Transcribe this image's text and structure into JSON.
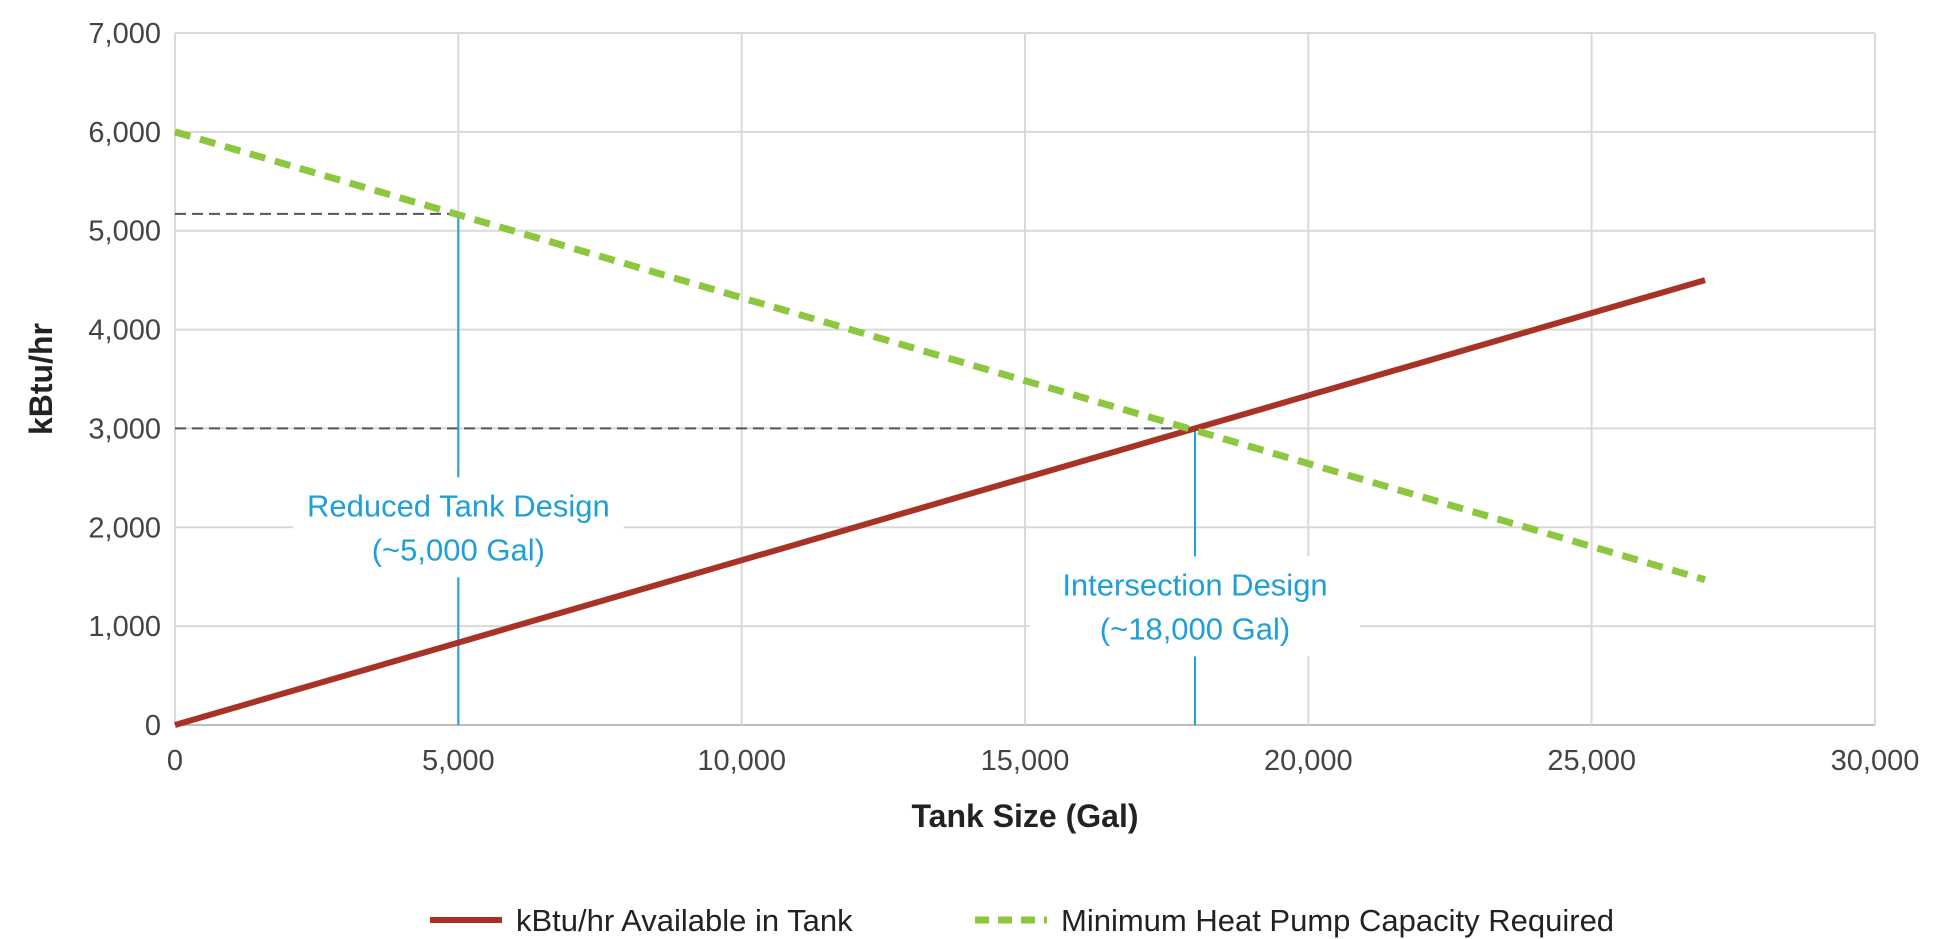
{
  "chart_data": {
    "type": "line",
    "title": "",
    "xlabel": "Tank Size (Gal)",
    "ylabel": "kBtu/hr",
    "xlim": [
      0,
      30000
    ],
    "ylim": [
      0,
      7000
    ],
    "x_ticks": [
      0,
      5000,
      10000,
      15000,
      20000,
      25000,
      30000
    ],
    "x_tick_labels": [
      "0",
      "5,000",
      "10,000",
      "15,000",
      "20,000",
      "25,000",
      "30,000"
    ],
    "y_ticks": [
      0,
      1000,
      2000,
      3000,
      4000,
      5000,
      6000,
      7000
    ],
    "y_tick_labels": [
      "0",
      "1,000",
      "2,000",
      "3,000",
      "4,000",
      "5,000",
      "6,000",
      "7,000"
    ],
    "grid": true,
    "legend_position": "bottom",
    "series": [
      {
        "name": "kBtu/hr Available in Tank",
        "color": "#a93226",
        "style": "solid",
        "points": [
          [
            0,
            0
          ],
          [
            27000,
            4500
          ]
        ]
      },
      {
        "name": "Minimum Heat Pump Capacity Required",
        "color": "#8dc63f",
        "style": "dashed",
        "points": [
          [
            0,
            6000
          ],
          [
            27000,
            1470
          ]
        ]
      }
    ],
    "reference_lines": [
      {
        "type": "horizontal",
        "y": 5170,
        "x_from": 0,
        "x_to": 5000,
        "color": "#555555",
        "style": "dashed"
      },
      {
        "type": "horizontal",
        "y": 3000,
        "x_from": 0,
        "x_to": 18000,
        "color": "#555555",
        "style": "dashed"
      },
      {
        "type": "vertical",
        "x": 5000,
        "y_from": 0,
        "y_to": 5170,
        "color": "#1f9fd8",
        "style": "solid"
      },
      {
        "type": "vertical",
        "x": 18000,
        "y_from": 0,
        "y_to": 3000,
        "color": "#1f9fd8",
        "style": "solid"
      }
    ],
    "annotations": [
      {
        "lines": [
          "Reduced Tank Design",
          "(~5,000 Gal)"
        ],
        "x": 5000,
        "y": 2000,
        "color": "#1f9fd8"
      },
      {
        "lines": [
          "Intersection Design",
          "(~18,000 Gal)"
        ],
        "x": 18000,
        "y": 1200,
        "color": "#1f9fd8"
      }
    ]
  }
}
